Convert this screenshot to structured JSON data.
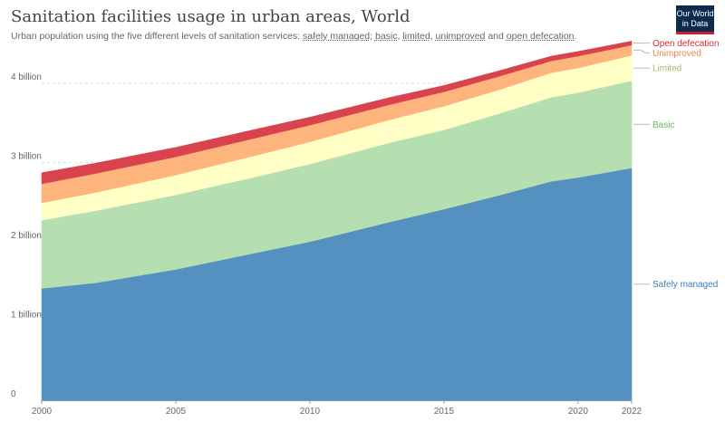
{
  "title": "Sanitation facilities usage in urban areas, World",
  "subtitle": {
    "prefix": "Urban population using the five different levels of sanitation services: ",
    "safely": "safely managed",
    "sep1": "; ",
    "basic": "basic",
    "sep2": ", ",
    "limited": "limited",
    "sep3": ", ",
    "unimproved": "unimproved",
    "and": " and ",
    "open": "open defecation",
    "end": "."
  },
  "logo": {
    "line1": "Our World",
    "line2": "in Data"
  },
  "chart_data": {
    "type": "area",
    "stacked": true,
    "x": [
      2000,
      2002,
      2005,
      2008,
      2010,
      2013,
      2015,
      2017,
      2019,
      2020,
      2022
    ],
    "xticks": [
      "2000",
      "2005",
      "2010",
      "2015",
      "2020",
      "2022"
    ],
    "xtick_values": [
      2000,
      2005,
      2010,
      2015,
      2020,
      2022
    ],
    "yticks": [
      "0",
      "1 billion",
      "2 billion",
      "3 billion",
      "4 billion"
    ],
    "ytick_values": [
      0,
      1,
      2,
      3,
      4
    ],
    "ylim": [
      0,
      4.5
    ],
    "xlim": [
      2000,
      2022
    ],
    "unit": "billion",
    "grid": true,
    "legend": "right-inline-labels",
    "series": [
      {
        "name": "Safely managed",
        "color": "#5591c0",
        "values": [
          1.41,
          1.48,
          1.65,
          1.86,
          2.0,
          2.25,
          2.41,
          2.58,
          2.76,
          2.81,
          2.93
        ]
      },
      {
        "name": "Basic",
        "color": "#b5dfb0",
        "values": [
          0.86,
          0.91,
          0.94,
          0.96,
          0.98,
          1.0,
          1.0,
          1.03,
          1.06,
          1.07,
          1.1
        ]
      },
      {
        "name": "Limited",
        "color": "#ffffc5",
        "values": [
          0.22,
          0.23,
          0.25,
          0.27,
          0.28,
          0.29,
          0.3,
          0.3,
          0.31,
          0.31,
          0.32
        ]
      },
      {
        "name": "Unimproved",
        "color": "#fdb57d",
        "values": [
          0.24,
          0.24,
          0.23,
          0.22,
          0.21,
          0.19,
          0.18,
          0.17,
          0.15,
          0.15,
          0.13
        ]
      },
      {
        "name": "Open defecation",
        "color": "#d9434d",
        "values": [
          0.14,
          0.13,
          0.12,
          0.11,
          0.1,
          0.09,
          0.08,
          0.07,
          0.06,
          0.06,
          0.05
        ]
      }
    ],
    "label_colors": [
      "#3b7dba",
      "#6cb66c",
      "#b5b06b",
      "#e5884a",
      "#d62c34"
    ]
  }
}
